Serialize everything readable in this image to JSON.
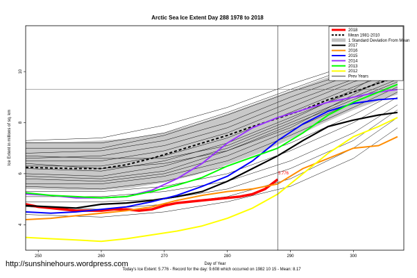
{
  "watermark_url": "http://sunshinehours.wordpress.com",
  "chart_data": {
    "type": "line",
    "title": "Arctic Sea Ice Extent Day 288 1978 to 2018",
    "xlabel": "Day of Year",
    "ylabel": "Ice Extent in millions of sq. km",
    "footer": "Today's Ice Extent: 5.776  - Record for the day: 9.608 which occurred on 1982 10 15  - Mean: 8.17",
    "marker_label": "5.776",
    "xlim": [
      248,
      308
    ],
    "ylim": [
      3.0,
      11.8
    ],
    "x_ticks": [
      250,
      260,
      270,
      280,
      290,
      300
    ],
    "x_tick_labels": [
      "250",
      "260",
      "270",
      "280",
      "290",
      "300"
    ],
    "y_ticks": [
      4,
      6,
      8,
      10
    ],
    "y_tick_labels": [
      "4",
      "6",
      "8",
      "10"
    ],
    "vertical_line_x": 288,
    "horizontal_line_y": 9.3,
    "grid": false,
    "legend_position": "top-right",
    "legend": [
      {
        "label": "2018",
        "color": "#ff0000",
        "style": "solid-thick"
      },
      {
        "label": "Mean 1981-2010",
        "color": "#000000",
        "style": "dashed"
      },
      {
        "label": "1 Standard Deviation From Mean",
        "color": "#c0c0c0",
        "style": "band"
      },
      {
        "label": "2017",
        "color": "#000000",
        "style": "solid"
      },
      {
        "label": "2016",
        "color": "#ff8c00",
        "style": "solid"
      },
      {
        "label": "2015",
        "color": "#0000ff",
        "style": "solid"
      },
      {
        "label": "2014",
        "color": "#9933ff",
        "style": "solid"
      },
      {
        "label": "2013",
        "color": "#00ff00",
        "style": "solid"
      },
      {
        "label": "2012",
        "color": "#ffff00",
        "style": "solid"
      },
      {
        "label": "Prev Years",
        "color": "#000000",
        "style": "thin"
      }
    ],
    "std_band": {
      "x": [
        248,
        255,
        260,
        265,
        270,
        275,
        280,
        285,
        290,
        295,
        300,
        305,
        307
      ],
      "upper": [
        7.25,
        7.25,
        7.3,
        7.4,
        7.6,
        7.95,
        8.35,
        8.8,
        9.25,
        9.7,
        10.1,
        10.45,
        10.55
      ],
      "lower": [
        5.4,
        5.35,
        5.35,
        5.45,
        5.65,
        5.95,
        6.35,
        6.8,
        7.35,
        7.95,
        8.5,
        8.95,
        9.1
      ]
    },
    "series": [
      {
        "name": "Mean 1981-2010",
        "color": "#000000",
        "x": [
          248,
          252,
          256,
          260,
          264,
          268,
          272,
          276,
          280,
          284,
          288,
          292,
          296,
          300,
          304,
          307
        ],
        "values": [
          6.25,
          6.22,
          6.2,
          6.2,
          6.35,
          6.6,
          6.9,
          7.2,
          7.5,
          7.85,
          8.17,
          8.5,
          8.9,
          9.2,
          9.55,
          9.8
        ]
      },
      {
        "name": "2018",
        "color": "#ff0000",
        "x": [
          248,
          250,
          252,
          254,
          256,
          258,
          260,
          262,
          264,
          266,
          268,
          270,
          272,
          274,
          276,
          278,
          280,
          282,
          284,
          286,
          288
        ],
        "values": [
          4.8,
          4.7,
          4.65,
          4.6,
          4.55,
          4.55,
          4.55,
          4.6,
          4.6,
          4.55,
          4.6,
          4.75,
          4.85,
          4.9,
          4.95,
          5.0,
          5.05,
          5.1,
          5.2,
          5.4,
          5.776
        ]
      },
      {
        "name": "2017",
        "color": "#000000",
        "x": [
          248,
          252,
          256,
          260,
          264,
          268,
          272,
          276,
          280,
          284,
          288,
          292,
          296,
          300,
          304,
          307
        ],
        "values": [
          4.75,
          4.7,
          4.65,
          4.8,
          4.85,
          4.95,
          5.1,
          5.3,
          5.7,
          6.2,
          6.7,
          7.3,
          7.85,
          8.1,
          8.3,
          8.4
        ]
      },
      {
        "name": "2016",
        "color": "#ff8c00",
        "x": [
          248,
          252,
          256,
          260,
          264,
          268,
          272,
          276,
          280,
          284,
          288,
          292,
          296,
          300,
          304,
          307
        ],
        "values": [
          4.2,
          4.25,
          4.35,
          4.45,
          4.55,
          4.7,
          4.95,
          5.15,
          5.3,
          5.4,
          5.6,
          6.2,
          6.6,
          7.0,
          7.1,
          7.45
        ]
      },
      {
        "name": "2015",
        "color": "#0000ff",
        "x": [
          248,
          252,
          256,
          260,
          264,
          268,
          272,
          276,
          280,
          284,
          288,
          292,
          296,
          300,
          304,
          307
        ],
        "values": [
          4.5,
          4.45,
          4.5,
          4.6,
          4.7,
          4.9,
          5.15,
          5.5,
          5.9,
          6.5,
          7.3,
          7.95,
          8.45,
          8.75,
          8.9,
          8.95
        ]
      },
      {
        "name": "2014",
        "color": "#9933ff",
        "x": [
          248,
          252,
          256,
          260,
          264,
          268,
          272,
          276,
          280,
          284,
          288,
          292,
          296,
          300,
          304,
          307
        ],
        "values": [
          5.2,
          5.15,
          5.05,
          5.05,
          5.1,
          5.35,
          5.8,
          6.4,
          7.2,
          7.8,
          8.2,
          8.5,
          8.8,
          9.0,
          9.2,
          9.3
        ]
      },
      {
        "name": "2013",
        "color": "#00ff00",
        "x": [
          248,
          252,
          256,
          260,
          264,
          268,
          272,
          276,
          280,
          284,
          288,
          292,
          296,
          300,
          304,
          307
        ],
        "values": [
          5.25,
          5.15,
          5.1,
          5.05,
          5.1,
          5.3,
          5.55,
          5.85,
          6.3,
          6.65,
          7.0,
          7.6,
          8.3,
          8.8,
          9.2,
          9.5
        ]
      },
      {
        "name": "2012",
        "color": "#ffff00",
        "x": [
          248,
          252,
          256,
          260,
          264,
          268,
          272,
          276,
          280,
          284,
          288,
          292,
          296,
          300,
          304,
          307
        ],
        "values": [
          3.5,
          3.45,
          3.4,
          3.35,
          3.45,
          3.6,
          3.75,
          3.95,
          4.25,
          4.65,
          5.2,
          6.0,
          6.8,
          7.45,
          7.85,
          8.2
        ]
      }
    ],
    "prev_years": [
      {
        "x": [
          248,
          260,
          270,
          280,
          290,
          300,
          307
        ],
        "values": [
          7.3,
          7.4,
          7.9,
          8.6,
          9.5,
          10.3,
          10.9
        ]
      },
      {
        "x": [
          248,
          260,
          270,
          280,
          290,
          300,
          307
        ],
        "values": [
          7.2,
          7.2,
          7.6,
          8.4,
          9.3,
          10.2,
          10.6
        ]
      },
      {
        "x": [
          248,
          260,
          270,
          280,
          290,
          300,
          307
        ],
        "values": [
          7.0,
          7.0,
          7.5,
          8.3,
          9.2,
          10.0,
          10.5
        ]
      },
      {
        "x": [
          248,
          260,
          270,
          280,
          290,
          300,
          307
        ],
        "values": [
          6.8,
          6.9,
          7.3,
          8.0,
          9.0,
          9.9,
          10.4
        ]
      },
      {
        "x": [
          248,
          260,
          270,
          280,
          290,
          300,
          307
        ],
        "values": [
          6.6,
          6.7,
          7.1,
          7.8,
          8.8,
          9.7,
          10.2
        ]
      },
      {
        "x": [
          248,
          260,
          270,
          280,
          290,
          300,
          307
        ],
        "values": [
          6.5,
          6.5,
          6.9,
          7.6,
          8.6,
          9.6,
          10.1
        ]
      },
      {
        "x": [
          248,
          260,
          270,
          280,
          290,
          300,
          307
        ],
        "values": [
          6.3,
          6.3,
          6.7,
          7.4,
          8.4,
          9.4,
          10.0
        ]
      },
      {
        "x": [
          248,
          260,
          270,
          280,
          290,
          300,
          307
        ],
        "values": [
          6.2,
          6.1,
          6.5,
          7.2,
          8.2,
          9.2,
          9.8
        ]
      },
      {
        "x": [
          248,
          260,
          270,
          280,
          290,
          300,
          307
        ],
        "values": [
          6.0,
          5.9,
          6.3,
          7.0,
          8.0,
          9.0,
          9.7
        ]
      },
      {
        "x": [
          248,
          260,
          270,
          280,
          290,
          300,
          307
        ],
        "values": [
          5.9,
          5.8,
          6.1,
          6.9,
          7.9,
          8.9,
          9.6
        ]
      },
      {
        "x": [
          248,
          260,
          270,
          280,
          290,
          300,
          307
        ],
        "values": [
          5.8,
          5.7,
          6.0,
          6.7,
          7.7,
          8.8,
          9.5
        ]
      },
      {
        "x": [
          248,
          260,
          270,
          280,
          290,
          300,
          307
        ],
        "values": [
          5.6,
          5.6,
          5.9,
          6.5,
          7.5,
          8.6,
          9.4
        ]
      },
      {
        "x": [
          248,
          260,
          270,
          280,
          290,
          300,
          307
        ],
        "values": [
          5.5,
          5.4,
          5.7,
          6.3,
          7.2,
          8.3,
          9.2
        ]
      },
      {
        "x": [
          248,
          260,
          270,
          280,
          290,
          300,
          307
        ],
        "values": [
          5.3,
          5.3,
          5.5,
          6.0,
          6.9,
          8.0,
          9.0
        ]
      },
      {
        "x": [
          248,
          260,
          270,
          280,
          290,
          300,
          307
        ],
        "values": [
          5.1,
          5.1,
          5.3,
          5.7,
          6.5,
          7.6,
          8.7
        ]
      },
      {
        "x": [
          248,
          260,
          270,
          280,
          290,
          300,
          307
        ],
        "values": [
          4.9,
          4.9,
          5.0,
          5.4,
          6.2,
          7.3,
          8.5
        ]
      },
      {
        "x": [
          248,
          260,
          270,
          280,
          290,
          300,
          307
        ],
        "values": [
          4.7,
          4.6,
          4.8,
          5.1,
          5.8,
          7.0,
          8.2
        ]
      },
      {
        "x": [
          248,
          260,
          270,
          280,
          290,
          300,
          307
        ],
        "values": [
          4.4,
          4.3,
          4.5,
          4.9,
          5.5,
          6.6,
          7.8
        ]
      },
      {
        "x": [
          248,
          260,
          270,
          280,
          290,
          300,
          307
        ],
        "values": [
          6.7,
          6.6,
          6.6,
          7.1,
          8.1,
          9.3,
          10.3
        ]
      },
      {
        "x": [
          248,
          260,
          270,
          280,
          290,
          300,
          307
        ],
        "values": [
          6.4,
          6.2,
          6.4,
          6.9,
          7.8,
          9.1,
          10.0
        ]
      }
    ]
  }
}
